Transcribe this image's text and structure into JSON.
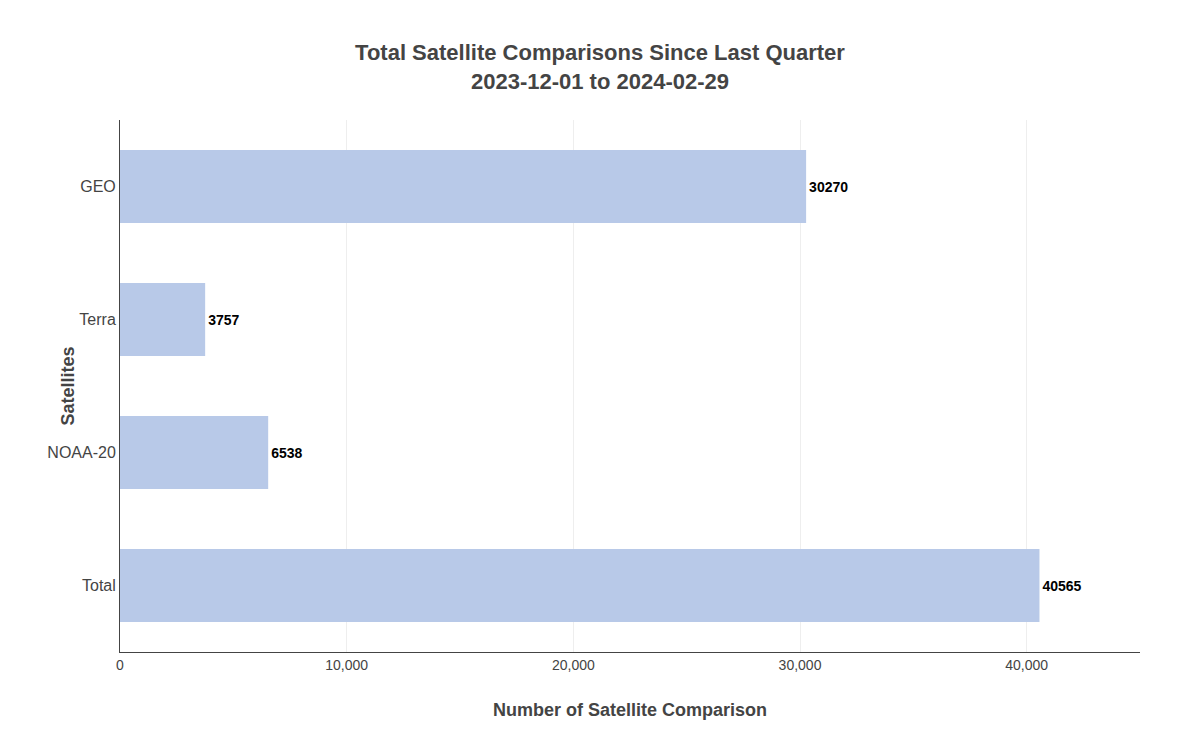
{
  "chart_data": {
    "type": "bar",
    "orientation": "horizontal",
    "title": "Total Satellite Comparisons Since Last Quarter",
    "subtitle": "2023-12-01 to 2024-02-29",
    "categories": [
      "GEO",
      "Terra",
      "NOAA-20",
      "Total"
    ],
    "values": [
      30270,
      3757,
      6538,
      40565
    ],
    "color": "#b8c9e8",
    "x_label": "Number of Satellite Comparison",
    "y_label": "Satellites",
    "xlim": [
      0,
      45000
    ],
    "xticks": [
      {
        "value": 0,
        "label": "0"
      },
      {
        "value": 10000,
        "label": "10,000"
      },
      {
        "value": 20000,
        "label": "20,000"
      },
      {
        "value": 30000,
        "label": "30,000"
      },
      {
        "value": 40000,
        "label": "40,000"
      }
    ],
    "grid": true,
    "data_labels": true
  }
}
